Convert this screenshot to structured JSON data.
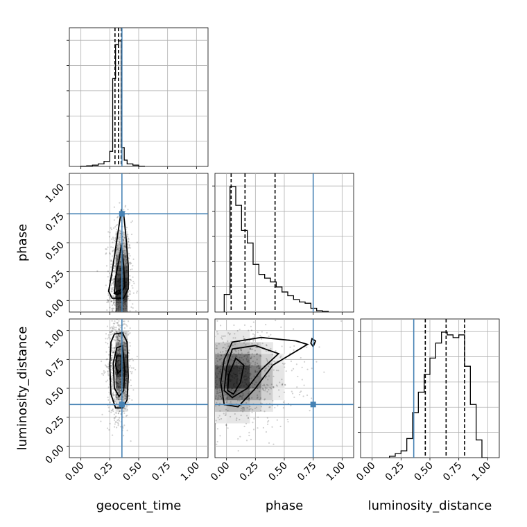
{
  "chart_data": {
    "type": "corner",
    "parameters": [
      "geocent_time",
      "phase",
      "luminosity_distance"
    ],
    "axis_range": [
      -0.1,
      1.1
    ],
    "tick_labels": [
      "0.00",
      "0.25",
      "0.50",
      "0.75",
      "1.00"
    ],
    "ticks": [
      0,
      0.25,
      0.5,
      0.75,
      1.0
    ],
    "grid": true,
    "truths": {
      "geocent_time": 0.355,
      "phase": 0.75,
      "luminosity_distance": 0.36
    },
    "truth_color": "#4682b4",
    "quantiles": {
      "geocent_time": [
        0.295,
        0.325,
        0.35
      ],
      "phase": [
        0.04,
        0.16,
        0.42
      ],
      "luminosity_distance": [
        0.46,
        0.64,
        0.8
      ]
    },
    "histograms": {
      "geocent_time": {
        "bin_edges": [
          0.0,
          0.05,
          0.1,
          0.15,
          0.2,
          0.25,
          0.275,
          0.3,
          0.325,
          0.35,
          0.375,
          0.4,
          0.45,
          0.5,
          0.55
        ],
        "counts": [
          0.2,
          0.5,
          1.0,
          2.0,
          4.0,
          12.0,
          70.0,
          97.0,
          100.0,
          15.0,
          5.0,
          2.0,
          1.0,
          0.2
        ]
      },
      "phase": {
        "bin_edges": [
          -0.02,
          0.03,
          0.08,
          0.13,
          0.18,
          0.23,
          0.28,
          0.33,
          0.38,
          0.43,
          0.48,
          0.53,
          0.58,
          0.63,
          0.68,
          0.73,
          0.78,
          0.83,
          0.88
        ],
        "counts": [
          14,
          100,
          85,
          65,
          55,
          38,
          30,
          27,
          24,
          20,
          16,
          13,
          10,
          8,
          7,
          3,
          1,
          0.5
        ]
      },
      "luminosity_distance": {
        "bin_edges": [
          0.15,
          0.2,
          0.25,
          0.3,
          0.35,
          0.4,
          0.45,
          0.5,
          0.55,
          0.6,
          0.65,
          0.7,
          0.75,
          0.8,
          0.85,
          0.9,
          0.95,
          1.0
        ],
        "counts": [
          1,
          3,
          5,
          14,
          33,
          48,
          61,
          73,
          84,
          92,
          90,
          88,
          90,
          67,
          39,
          13,
          0
        ]
      }
    },
    "scatter_density": {
      "geocent_time_vs_phase": {
        "center": [
          0.34,
          0.12
        ],
        "spread": [
          0.035,
          0.22
        ]
      },
      "geocent_time_vs_luminosity_distance": {
        "center": [
          0.33,
          0.68
        ],
        "spread": [
          0.035,
          0.17
        ]
      },
      "phase_vs_luminosity_distance": {
        "center": [
          0.08,
          0.6
        ],
        "spread": [
          0.18,
          0.17
        ]
      }
    },
    "contours": {
      "geocent_time_vs_phase": [
        [
          [
            0.35,
            0.78
          ],
          [
            0.37,
            0.75
          ],
          [
            0.39,
            0.55
          ],
          [
            0.41,
            0.3
          ],
          [
            0.41,
            0.1
          ],
          [
            0.37,
            0.02
          ],
          [
            0.27,
            0.02
          ],
          [
            0.24,
            0.08
          ],
          [
            0.27,
            0.25
          ],
          [
            0.3,
            0.45
          ],
          [
            0.33,
            0.65
          ]
        ],
        [
          [
            0.35,
            0.48
          ],
          [
            0.37,
            0.3
          ],
          [
            0.38,
            0.12
          ],
          [
            0.34,
            0.06
          ],
          [
            0.29,
            0.07
          ],
          [
            0.3,
            0.2
          ],
          [
            0.33,
            0.35
          ]
        ],
        [
          [
            0.31,
            0.08
          ],
          [
            0.34,
            0.09
          ],
          [
            0.32,
            0.05
          ],
          [
            0.29,
            0.06
          ]
        ]
      ],
      "geocent_time_vs_luminosity_distance": [
        [
          [
            0.29,
            0.97
          ],
          [
            0.36,
            0.98
          ],
          [
            0.4,
            0.9
          ],
          [
            0.41,
            0.6
          ],
          [
            0.4,
            0.4
          ],
          [
            0.36,
            0.33
          ],
          [
            0.3,
            0.33
          ],
          [
            0.26,
            0.45
          ],
          [
            0.25,
            0.7
          ],
          [
            0.26,
            0.9
          ]
        ],
        [
          [
            0.31,
            0.85
          ],
          [
            0.36,
            0.87
          ],
          [
            0.38,
            0.65
          ],
          [
            0.37,
            0.48
          ],
          [
            0.33,
            0.43
          ],
          [
            0.29,
            0.5
          ],
          [
            0.28,
            0.72
          ]
        ],
        [
          [
            0.31,
            0.78
          ],
          [
            0.35,
            0.78
          ],
          [
            0.35,
            0.66
          ],
          [
            0.32,
            0.63
          ],
          [
            0.3,
            0.7
          ]
        ]
      ],
      "phase_vs_luminosity_distance": [
        [
          [
            -0.02,
            0.75
          ],
          [
            0.05,
            0.9
          ],
          [
            0.3,
            0.94
          ],
          [
            0.6,
            0.91
          ],
          [
            0.7,
            0.88
          ],
          [
            0.65,
            0.85
          ],
          [
            0.4,
            0.7
          ],
          [
            0.25,
            0.5
          ],
          [
            0.1,
            0.34
          ],
          [
            -0.02,
            0.36
          ],
          [
            -0.05,
            0.55
          ]
        ],
        [
          [
            0.0,
            0.68
          ],
          [
            0.05,
            0.84
          ],
          [
            0.25,
            0.87
          ],
          [
            0.45,
            0.8
          ],
          [
            0.3,
            0.66
          ],
          [
            0.18,
            0.5
          ],
          [
            0.05,
            0.42
          ],
          [
            -0.02,
            0.48
          ]
        ],
        [
          [
            0.02,
            0.62
          ],
          [
            0.08,
            0.76
          ],
          [
            0.15,
            0.7
          ],
          [
            0.12,
            0.55
          ],
          [
            0.06,
            0.45
          ],
          [
            0.01,
            0.48
          ]
        ],
        [
          [
            0.74,
            0.93
          ],
          [
            0.77,
            0.91
          ],
          [
            0.75,
            0.86
          ],
          [
            0.73,
            0.89
          ]
        ]
      ]
    }
  }
}
